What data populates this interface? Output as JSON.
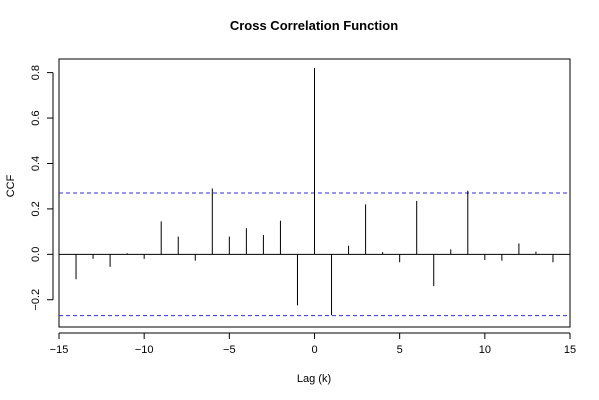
{
  "chart_data": {
    "type": "bar",
    "title": "Cross Correlation Function",
    "xlabel": "Lag (k)",
    "ylabel": "CCF",
    "xlim": [
      -15,
      15
    ],
    "ylim": [
      -0.32,
      0.86
    ],
    "x_ticks": [
      -15,
      -10,
      -5,
      0,
      5,
      10,
      15
    ],
    "y_ticks": [
      -0.2,
      0.0,
      0.2,
      0.4,
      0.6,
      0.8
    ],
    "y_tick_labels": [
      "-0.2",
      "0.0",
      "0.2",
      "0.4",
      "0.6",
      "0.8"
    ],
    "lags": [
      -14,
      -13,
      -12,
      -11,
      -10,
      -9,
      -8,
      -7,
      -6,
      -5,
      -4,
      -3,
      -2,
      -1,
      0,
      1,
      2,
      3,
      4,
      5,
      6,
      7,
      8,
      9,
      10,
      11,
      12,
      13,
      14
    ],
    "values": [
      -0.11,
      -0.02,
      -0.055,
      0.005,
      -0.02,
      0.145,
      0.078,
      -0.028,
      0.29,
      0.078,
      0.115,
      0.085,
      0.148,
      -0.225,
      0.82,
      -0.268,
      0.038,
      0.22,
      0.01,
      -0.035,
      0.235,
      -0.14,
      0.022,
      0.28,
      -0.025,
      -0.028,
      0.048,
      0.012,
      -0.035
    ],
    "confidence_bounds": [
      0.27,
      -0.27
    ],
    "colors": {
      "spike": "#000000",
      "bound": "#2e2eda",
      "zero_line": "#000000"
    },
    "grid": false,
    "legend": "none"
  }
}
